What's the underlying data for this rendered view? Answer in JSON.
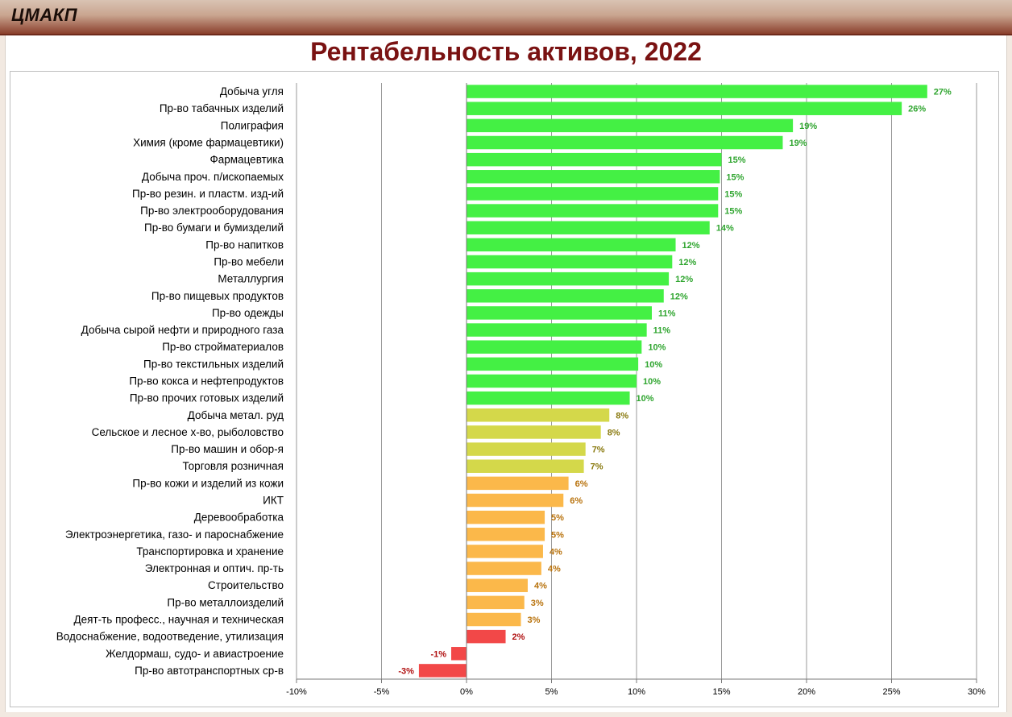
{
  "header": {
    "brand": "ЦМАКП"
  },
  "chart_data": {
    "type": "bar",
    "orientation": "horizontal",
    "title": "Рентабельность активов, 2022",
    "xlabel": "",
    "ylabel": "",
    "xlim": [
      -10,
      30
    ],
    "ticks": [
      -10,
      -5,
      0,
      5,
      10,
      15,
      20,
      25,
      30
    ],
    "tick_labels": [
      "-10%",
      "-5%",
      "0%",
      "5%",
      "10%",
      "15%",
      "20%",
      "25%",
      "30%"
    ],
    "grid": true,
    "legend": "none",
    "colors": {
      "green": "#44f044",
      "green_label": "#2fa52f",
      "olive": "#d4d84a",
      "olive_label": "#8a7a10",
      "orange": "#fbb84a",
      "orange_label": "#b8720c",
      "red": "#f24848",
      "red_label": "#b01010"
    },
    "categories": [
      "Добыча угля",
      "Пр-во табачных изделий",
      "Полиграфия",
      "Химия (кроме фармацевтики)",
      "Фармацевтика",
      "Добыча проч. п/ископаемых",
      "Пр-во резин. и пластм. изд-ий",
      "Пр-во электрооборудования",
      "Пр-во бумаги и бумизделий",
      "Пр-во напитков",
      "Пр-во мебели",
      "Металлургия",
      "Пр-во пищевых продуктов",
      "Пр-во одежды",
      "Добыча сырой нефти и природного газа",
      "Пр-во стройматериалов",
      "Пр-во текстильных изделий",
      "Пр-во кокса и нефтепродуктов",
      "Пр-во прочих готовых изделий",
      "Добыча метал. руд",
      "Сельское и лесное х-во, рыболовство",
      "Пр-во машин и обор-я",
      "Торговля розничная",
      "Пр-во кожи и изделий из кожи",
      "ИКТ",
      "Деревообработка",
      "Электроэнергетика, газо- и пароснабжение",
      "Транспортировка и хранение",
      "Электронная и оптич. пр-ть",
      "Строительство",
      "Пр-во металлоизделий",
      "Деят-ть професс., научная и техническая",
      "Водоснабжение, водоотведение, утилизация",
      "Желдормаш, судо- и авиастроение",
      "Пр-во автотранспортных ср-в"
    ],
    "values": [
      27.1,
      25.6,
      19.2,
      18.6,
      15.0,
      14.9,
      14.8,
      14.8,
      14.3,
      12.3,
      12.1,
      11.9,
      11.6,
      10.9,
      10.6,
      10.3,
      10.1,
      10.0,
      9.6,
      8.4,
      7.9,
      7.0,
      6.9,
      6.0,
      5.7,
      4.6,
      4.6,
      4.5,
      4.4,
      3.6,
      3.4,
      3.2,
      2.3,
      -0.9,
      -2.8
    ],
    "value_labels": [
      "27%",
      "26%",
      "19%",
      "19%",
      "15%",
      "15%",
      "15%",
      "15%",
      "14%",
      "12%",
      "12%",
      "12%",
      "12%",
      "11%",
      "11%",
      "10%",
      "10%",
      "10%",
      "10%",
      "8%",
      "8%",
      "7%",
      "7%",
      "6%",
      "6%",
      "5%",
      "5%",
      "4%",
      "4%",
      "4%",
      "3%",
      "3%",
      "2%",
      "-1%",
      "-3%"
    ],
    "color_groups": [
      "green",
      "green",
      "green",
      "green",
      "green",
      "green",
      "green",
      "green",
      "green",
      "green",
      "green",
      "green",
      "green",
      "green",
      "green",
      "green",
      "green",
      "green",
      "green",
      "olive",
      "olive",
      "olive",
      "olive",
      "orange",
      "orange",
      "orange",
      "orange",
      "orange",
      "orange",
      "orange",
      "orange",
      "orange",
      "red",
      "red",
      "red"
    ]
  }
}
